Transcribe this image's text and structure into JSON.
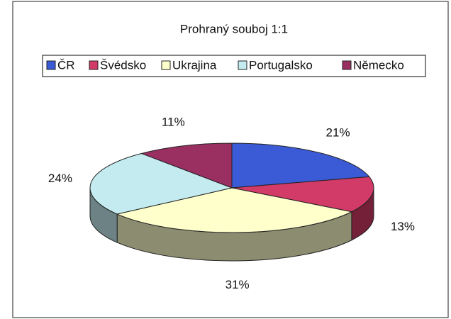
{
  "chart_data": {
    "type": "pie",
    "title": "Prohraný souboj 1:1",
    "categories": [
      "ČR",
      "Švédsko",
      "Ukrajina",
      "Portugalsko",
      "Německo"
    ],
    "values": [
      21,
      13,
      31,
      24,
      11
    ],
    "value_labels": [
      "21%",
      "13%",
      "31%",
      "24%",
      "11%"
    ],
    "colors": [
      "#3b5bd6",
      "#d23a68",
      "#ffffcc",
      "#c4ecf0",
      "#9a2f62"
    ],
    "legend": "top"
  }
}
